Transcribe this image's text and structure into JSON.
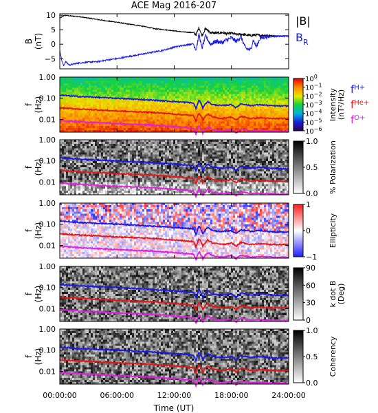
{
  "chart_data": {
    "type": "line",
    "title": "ACE Mag 2016-207",
    "xlabel": "Time (UT)",
    "x_ticks": [
      "00:00:00",
      "06:00:00",
      "12:00:00",
      "18:00:00",
      "24:00:00"
    ],
    "x_tick_hours": [
      0,
      6,
      12,
      18,
      24
    ],
    "panels": [
      {
        "kind": "timeseries",
        "ylabel": "B",
        "yunit": "(nT)",
        "ylim": [
          -8.5,
          10.5
        ],
        "y_ticks": [
          "10",
          "5",
          "0",
          "−5"
        ],
        "y_tick_values": [
          10,
          5,
          0,
          -5
        ],
        "series": [
          {
            "name": "|B|",
            "color": "#000000",
            "x": [
              0,
              0.5,
              1,
              2,
              3,
              4,
              5,
              6,
              7,
              8,
              9,
              10,
              11,
              12,
              13,
              14,
              14.3,
              14.6,
              14.9,
              15.3,
              15.8,
              16.4,
              17,
              17.6,
              18,
              18.6,
              19,
              19.5,
              20,
              20.5,
              21,
              21.5,
              22,
              23,
              24
            ],
            "y": [
              9,
              10,
              9.8,
              9.5,
              9,
              8.5,
              8,
              7.6,
              7,
              6.6,
              6,
              5.3,
              5,
              4.6,
              4.2,
              4,
              3.2,
              5.8,
              3,
              5.4,
              4,
              3.8,
              4,
              3.6,
              3.8,
              3.3,
              3.5,
              3.2,
              3,
              3.2,
              3,
              3.1,
              3,
              2.8,
              2.9
            ]
          },
          {
            "name": "B_R",
            "color": "#1a1ae6",
            "x": [
              0,
              0.2,
              0.4,
              0.6,
              1,
              1.5,
              2,
              3,
              4,
              5,
              6,
              7,
              8,
              9,
              10,
              11,
              12,
              13,
              14,
              14.3,
              14.6,
              14.9,
              15.3,
              15.8,
              16.4,
              17,
              17.5,
              18,
              18.5,
              19,
              19.5,
              20,
              20.3,
              20.6,
              21,
              21.5,
              22,
              23,
              24
            ],
            "y": [
              -2,
              -5.5,
              -7.5,
              -6,
              -7.2,
              -6.8,
              -6.5,
              -6.2,
              -6,
              -5.4,
              -5,
              -4.4,
              -3.8,
              -3.2,
              -2.6,
              -2,
              -1,
              -0.4,
              0.2,
              -2,
              3.5,
              -1.5,
              2.8,
              0,
              1,
              0.5,
              1.5,
              2.2,
              1,
              2.5,
              -1.5,
              -2,
              1.5,
              -1,
              2,
              2.5,
              2.6,
              2.8,
              2.8
            ]
          }
        ],
        "legend": [
          {
            "label": "|B|",
            "color": "#000000"
          },
          {
            "label": "B",
            "sub": "R",
            "color": "#1a1ae6"
          }
        ]
      },
      {
        "kind": "spectrogram",
        "ylabel": "f",
        "yunit": "(Hz)",
        "y_ticks": [
          "1.00",
          "0.10",
          "0.01"
        ],
        "colorbar": {
          "scheme": "rainbow",
          "label": "Intensity",
          "unit": "(nT²/Hz)",
          "ticks": [
            {
              "base": "10",
              "exp": "0"
            },
            {
              "base": "10",
              "exp": "−1"
            },
            {
              "base": "10",
              "exp": "−2"
            },
            {
              "base": "10",
              "exp": "−3"
            },
            {
              "base": "10",
              "exp": "−4"
            },
            {
              "base": "10",
              "exp": "−5"
            },
            {
              "base": "10",
              "exp": "−6"
            }
          ]
        },
        "legend": [
          {
            "label": "f",
            "sub": "H+",
            "color": "#1a1ae6"
          },
          {
            "label": "f",
            "sub": "He+",
            "color": "#e01818"
          },
          {
            "label": "f",
            "sub": "O+",
            "color": "#e020e0"
          }
        ]
      },
      {
        "kind": "spectrogram",
        "ylabel": "f",
        "yunit": "(Hz)",
        "y_ticks": [
          "1.00",
          "0.10",
          "0.01"
        ],
        "colorbar": {
          "scheme": "gray",
          "label": "% Polarization",
          "unit": "",
          "ticks": [
            "1.0",
            "0.5",
            "0.0"
          ]
        }
      },
      {
        "kind": "spectrogram",
        "ylabel": "f",
        "yunit": "(Hz)",
        "y_ticks": [
          "1.00",
          "0.10",
          "0.01"
        ],
        "colorbar": {
          "scheme": "bwr",
          "label": "Ellipticity",
          "unit": "",
          "ticks": [
            "1",
            "0",
            "−1"
          ]
        }
      },
      {
        "kind": "spectrogram",
        "ylabel": "f",
        "yunit": "(Hz)",
        "y_ticks": [
          "1.00",
          "0.10",
          "0.01"
        ],
        "colorbar": {
          "scheme": "gray",
          "label": "k dot B",
          "unit": "(Deg)",
          "ticks": [
            "90",
            "60",
            "30",
            "0"
          ]
        }
      },
      {
        "kind": "spectrogram",
        "ylabel": "f",
        "yunit": "(Hz)",
        "y_ticks": [
          "1.00",
          "0.10",
          "0.01"
        ],
        "colorbar": {
          "scheme": "gray",
          "label": "Coherency",
          "unit": "",
          "ticks": [
            "1.0",
            "0.5",
            "0.0"
          ]
        }
      }
    ],
    "gyrofrequency_lines": [
      {
        "name": "f_H+",
        "color": "#1a1ae6",
        "x": [
          0,
          2,
          4,
          6,
          8,
          10,
          12,
          14,
          14.3,
          14.6,
          15,
          15.5,
          16,
          17,
          18,
          18.5,
          19,
          20,
          21,
          22,
          23,
          24
        ],
        "y": [
          0.14,
          0.12,
          0.11,
          0.1,
          0.09,
          0.08,
          0.07,
          0.06,
          0.03,
          0.08,
          0.035,
          0.07,
          0.05,
          0.045,
          0.05,
          0.035,
          0.055,
          0.045,
          0.05,
          0.045,
          0.043,
          0.043
        ]
      },
      {
        "name": "f_He+",
        "color": "#e01818",
        "x": [
          0,
          2,
          4,
          6,
          8,
          10,
          12,
          14,
          14.3,
          14.6,
          15,
          15.5,
          16,
          17,
          18,
          18.5,
          19,
          20,
          21,
          22,
          23,
          24
        ],
        "y": [
          0.035,
          0.031,
          0.028,
          0.025,
          0.023,
          0.021,
          0.018,
          0.015,
          0.008,
          0.02,
          0.009,
          0.018,
          0.013,
          0.011,
          0.013,
          0.009,
          0.014,
          0.011,
          0.012,
          0.011,
          0.011,
          0.011
        ]
      },
      {
        "name": "f_O+",
        "color": "#e020e0",
        "x": [
          0,
          2,
          4,
          6,
          8,
          10,
          12,
          14,
          14.3,
          14.6,
          15,
          15.5,
          16,
          17,
          18,
          18.5,
          19,
          20,
          21,
          22,
          23,
          24
        ],
        "y": [
          0.009,
          0.0078,
          0.007,
          0.0063,
          0.0058,
          0.0053,
          0.0046,
          0.0038,
          0.002,
          0.005,
          0.0023,
          0.0045,
          0.0033,
          0.0028,
          0.0033,
          0.0023,
          0.0035,
          0.0028,
          0.003,
          0.0028,
          0.0027,
          0.0027
        ]
      }
    ]
  }
}
